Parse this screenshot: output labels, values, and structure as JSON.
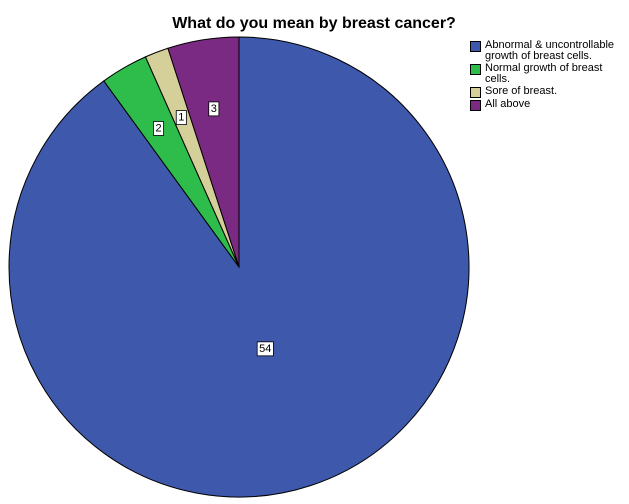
{
  "chart_data": {
    "type": "pie",
    "title": "What do you mean by breast cancer?",
    "categories": [
      "Abnormal & uncontrollable growth of breast cells.",
      "Normal growth of breast cells.",
      "Sore of breast.",
      "All above"
    ],
    "values": [
      54,
      2,
      1,
      3
    ],
    "colors": [
      "#3e58ac",
      "#2ebd4b",
      "#d5d09a",
      "#7b2a84"
    ],
    "legend": "top-right"
  }
}
